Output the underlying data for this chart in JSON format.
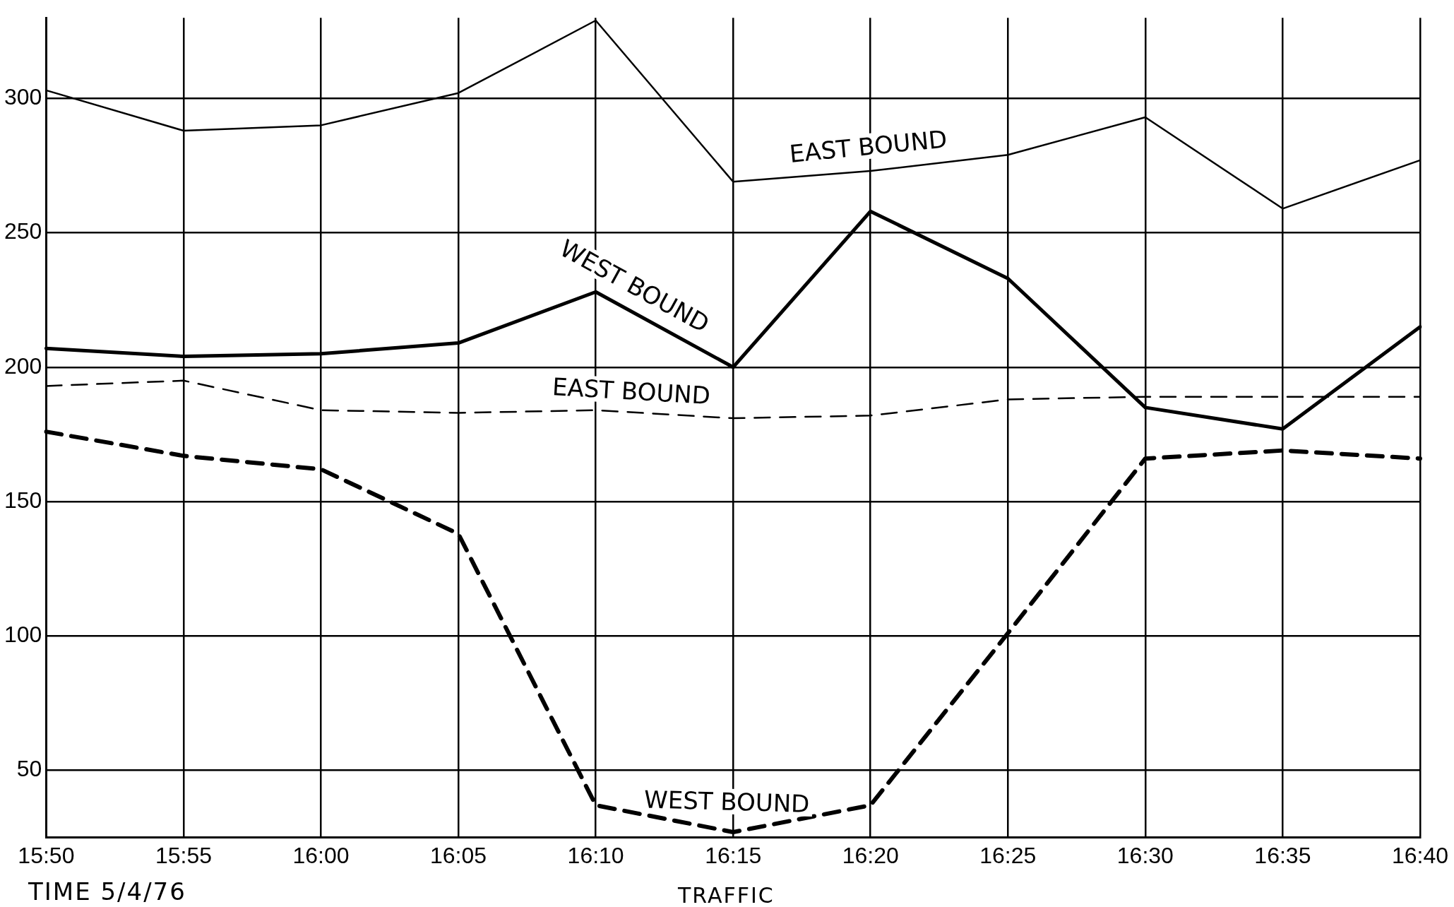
{
  "chart_data": {
    "type": "line",
    "xlabel": "TIME 5/4/76",
    "annotations": [
      "TRAFFIC"
    ],
    "categories": [
      "15:50",
      "15:55",
      "16:00",
      "16:05",
      "16:10",
      "16:15",
      "16:20",
      "16:25",
      "16:30",
      "16:35",
      "16:40"
    ],
    "series": [
      {
        "name": "EAST BOUND",
        "color": "#000000",
        "line_style": "solid",
        "values": [
          303,
          288,
          290,
          302,
          329,
          269,
          273,
          279,
          293,
          259,
          277
        ]
      },
      {
        "name": "WEST BOUND",
        "color": "#000000",
        "line_style": "solid",
        "values": [
          207,
          204,
          205,
          209,
          228,
          200,
          258,
          233,
          185,
          177,
          215
        ]
      },
      {
        "name": "EAST BOUND",
        "color": "#000000",
        "line_style": "dashed",
        "values": [
          193,
          195,
          184,
          183,
          184,
          181,
          182,
          188,
          189,
          189,
          189
        ]
      },
      {
        "name": "WEST BOUND",
        "color": "#000000",
        "line_style": "dashed",
        "values": [
          176,
          167,
          162,
          138,
          37,
          27,
          37,
          101,
          166,
          169,
          166
        ]
      }
    ],
    "ylim": [
      25,
      330
    ],
    "yticks": [
      50,
      100,
      150,
      200,
      250,
      300
    ],
    "grid": true,
    "legend": false,
    "marker": "none"
  }
}
